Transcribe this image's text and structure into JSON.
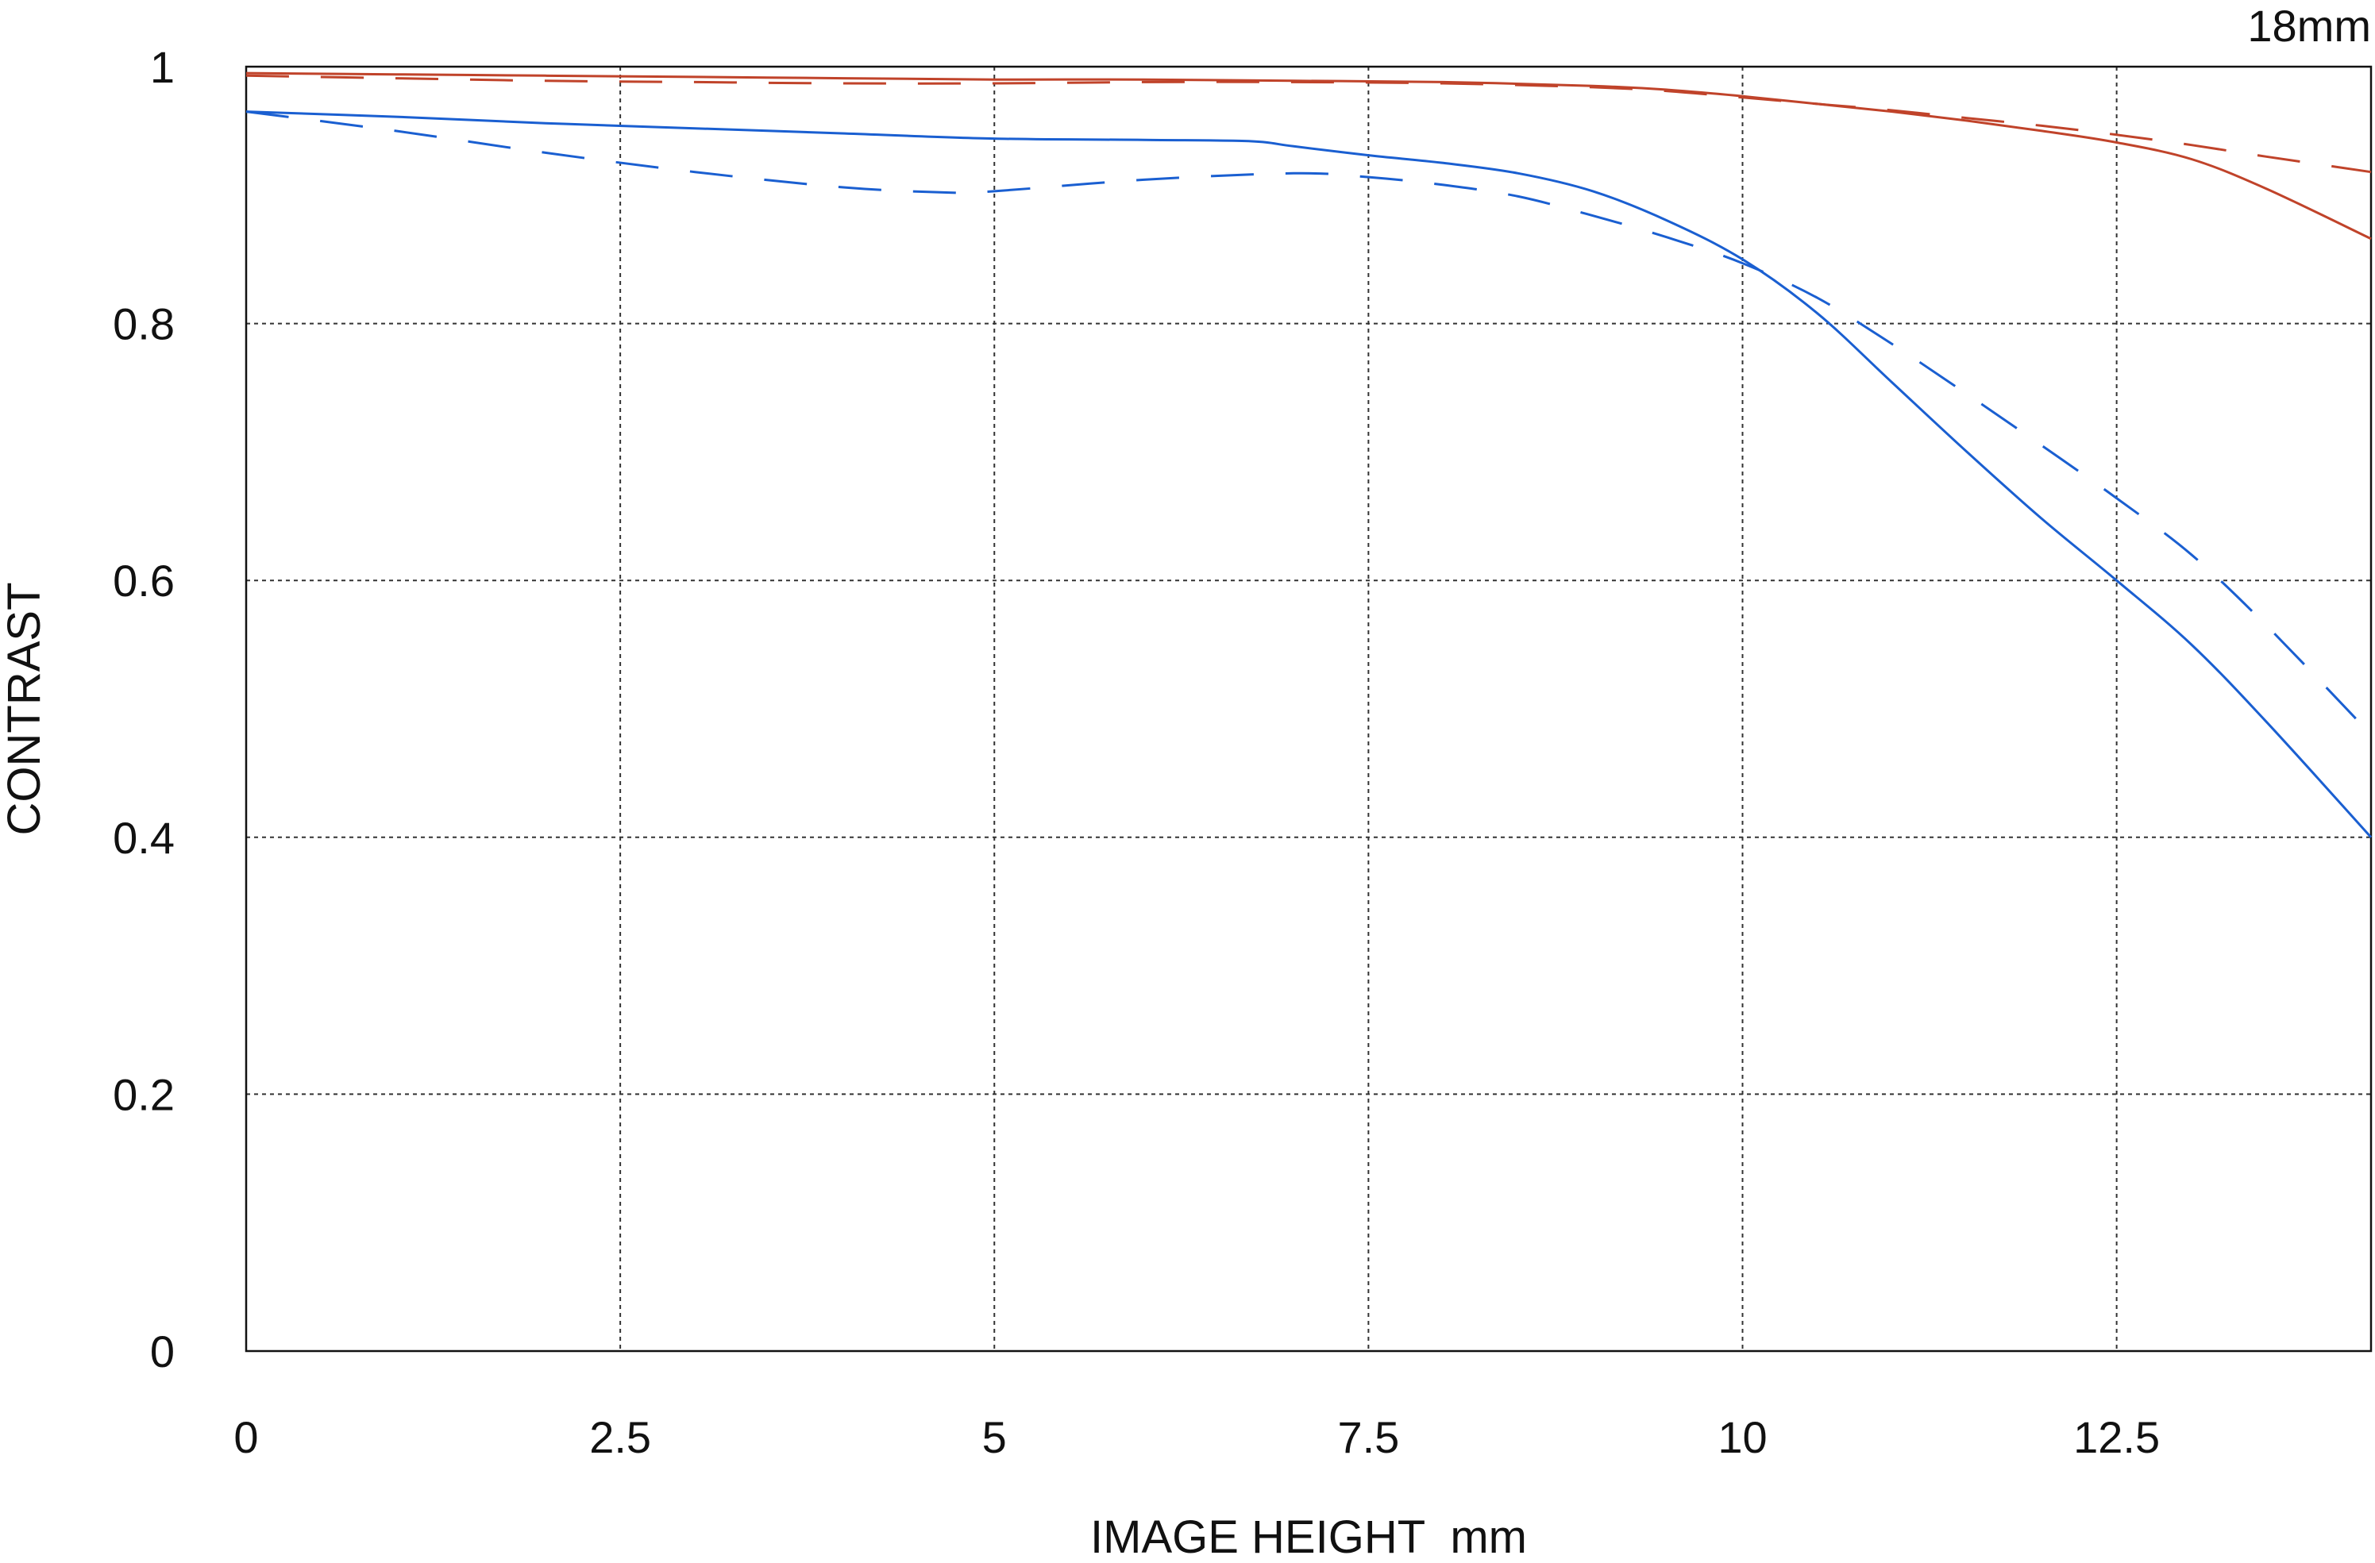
{
  "corner_label": "18mm",
  "chart_data": {
    "type": "line",
    "title": "",
    "xlabel": "IMAGE HEIGHT  mm",
    "ylabel": "CONTRAST",
    "xlim": [
      0,
      14.2
    ],
    "ylim": [
      0,
      1
    ],
    "x_ticks": [
      0,
      2.5,
      5,
      7.5,
      10,
      12.5
    ],
    "x_tick_labels": [
      "0",
      "2.5",
      "5",
      "7.5",
      "10",
      "12.5"
    ],
    "y_ticks": [
      0,
      0.2,
      0.4,
      0.6,
      0.8,
      1
    ],
    "y_tick_labels": [
      "0",
      "0.2",
      "0.4",
      "0.6",
      "0.8",
      "1"
    ],
    "grid": true,
    "legend": "none",
    "series": [
      {
        "color": "#c0432a",
        "style": "solid",
        "x": [
          0,
          1,
          2,
          3,
          4,
          5,
          6,
          7,
          8,
          9,
          9.5,
          10,
          10.5,
          11,
          11.5,
          12,
          12.5,
          13,
          13.5,
          14.2
        ],
        "y": [
          0.995,
          0.994,
          0.993,
          0.992,
          0.991,
          0.99,
          0.99,
          0.989,
          0.988,
          0.985,
          0.982,
          0.977,
          0.971,
          0.965,
          0.958,
          0.95,
          0.941,
          0.928,
          0.905,
          0.866
        ]
      },
      {
        "color": "#c0432a",
        "style": "dashed",
        "x": [
          0,
          1,
          2,
          3,
          4,
          5,
          6,
          7,
          8,
          9,
          9.5,
          10,
          10.5,
          11,
          11.5,
          12,
          12.5,
          13,
          13.5,
          14.2
        ],
        "y": [
          0.993,
          0.991,
          0.989,
          0.988,
          0.987,
          0.987,
          0.988,
          0.988,
          0.987,
          0.984,
          0.981,
          0.976,
          0.971,
          0.966,
          0.96,
          0.954,
          0.947,
          0.939,
          0.93,
          0.918
        ]
      },
      {
        "color": "#1a5fd1",
        "style": "solid",
        "x": [
          0,
          1,
          2,
          3,
          4,
          5,
          6,
          6.7,
          7,
          7.5,
          8,
          8.5,
          9,
          9.5,
          10,
          10.5,
          11,
          11.5,
          12,
          12.5,
          13,
          13.5,
          14.2
        ],
        "y": [
          0.965,
          0.961,
          0.956,
          0.952,
          0.948,
          0.944,
          0.943,
          0.942,
          0.938,
          0.931,
          0.925,
          0.917,
          0.903,
          0.88,
          0.85,
          0.808,
          0.754,
          0.7,
          0.648,
          0.6,
          0.55,
          0.49,
          0.4
        ]
      },
      {
        "color": "#1a5fd1",
        "style": "dashed",
        "x": [
          0,
          1,
          2,
          3,
          4,
          4.7,
          5,
          6,
          7,
          7.5,
          8,
          8.5,
          9,
          9.5,
          10,
          10.5,
          11,
          11.5,
          12,
          12.5,
          13,
          13.5,
          14.2
        ],
        "y": [
          0.965,
          0.95,
          0.933,
          0.918,
          0.906,
          0.902,
          0.903,
          0.912,
          0.917,
          0.914,
          0.908,
          0.899,
          0.884,
          0.867,
          0.847,
          0.82,
          0.784,
          0.745,
          0.705,
          0.664,
          0.62,
          0.565,
          0.48
        ]
      }
    ]
  }
}
